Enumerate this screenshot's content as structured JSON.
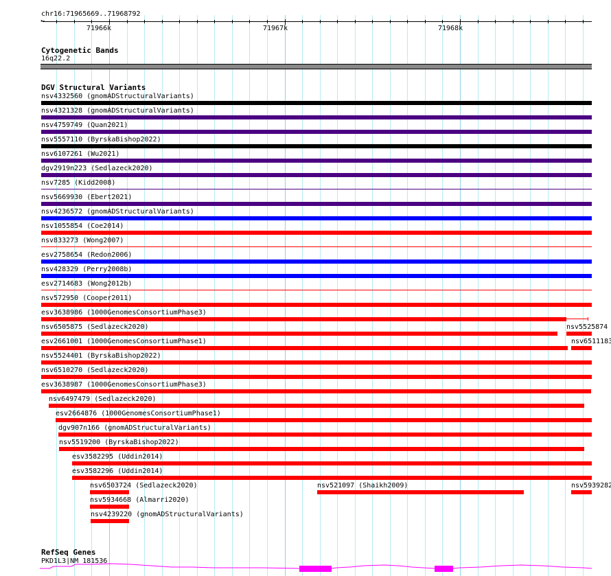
{
  "ruler": {
    "location": "chr16:71965669..71968792",
    "labels": [
      "71966k",
      "71967k",
      "71968k"
    ]
  },
  "cytobands": {
    "title": "Cytogenetic Bands",
    "band": "16q22.2"
  },
  "dgv": {
    "title": "DGV Structural Variants",
    "rows": [
      [
        {
          "label": "nsv4332560 (gnomADStructuralVariants)",
          "color": "#000000"
        }
      ],
      [
        {
          "label": "nsv4321328 (gnomADStructuralVariants)",
          "color": "#4b0082"
        }
      ],
      [
        {
          "label": "nsv4759749 (Quan2021)",
          "color": "#4b0082"
        }
      ],
      [
        {
          "label": "nsv5557110 (ByrskaBishop2022)",
          "color": "#000000"
        }
      ],
      [
        {
          "label": "nsv6107261 (Wu2021)",
          "color": "#4b0082"
        }
      ],
      [
        {
          "label": "dgv2919n223 (Sedlazeck2020)",
          "color": "#4b0082"
        }
      ],
      [
        {
          "label": "nsv7285 (Kidd2008)",
          "color": "#4b0082"
        }
      ],
      [
        {
          "label": "nsv5669930 (Ebert2021)",
          "color": "#4b0082"
        }
      ],
      [
        {
          "label": "nsv4236572 (gnomADStructuralVariants)",
          "color": "#0000ff"
        }
      ],
      [
        {
          "label": "nsv1055854 (Coe2014)",
          "color": "#ff0000"
        }
      ],
      [
        {
          "label": "nsv833273 (Wong2007)",
          "color": "#ff0000"
        }
      ],
      [
        {
          "label": "esv2758654 (Redon2006)",
          "color": "#0000ff"
        }
      ],
      [
        {
          "label": "nsv428329 (Perry2008b)",
          "color": "#0000ff"
        }
      ],
      [
        {
          "label": "esv2714683 (Wong2012b)",
          "color": "#ff0000"
        }
      ],
      [
        {
          "label": "nsv572950 (Cooper2011)",
          "color": "#ff0000"
        }
      ],
      [
        {
          "label": "esv3638986 (1000GenomesConsortiumPhase3)",
          "color": "#ff0000"
        }
      ],
      [
        {
          "label": "nsv6505875 (Sedlazeck2020)",
          "color": "#ff0000"
        },
        {
          "label": "nsv5525874",
          "color": "#ff0000"
        }
      ],
      [
        {
          "label": "esv2661001 (1000GenomesConsortiumPhase1)",
          "color": "#ff0000"
        },
        {
          "label": "nsv6511183",
          "color": "#ff0000"
        }
      ],
      [
        {
          "label": "nsv5524401 (ByrskaBishop2022)",
          "color": "#ff0000"
        }
      ],
      [
        {
          "label": "nsv6510270 (Sedlazeck2020)",
          "color": "#ff0000"
        }
      ],
      [
        {
          "label": "esv3638987 (1000GenomesConsortiumPhase3)",
          "color": "#ff0000"
        }
      ],
      [
        {
          "label": "nsv6497479 (Sedlazeck2020)",
          "color": "#ff0000"
        }
      ],
      [
        {
          "label": "esv2664876 (1000GenomesConsortiumPhase1)",
          "color": "#ff0000"
        }
      ],
      [
        {
          "label": "dgv907n166 (gnomADStructuralVariants)",
          "color": "#ff0000"
        }
      ],
      [
        {
          "label": "nsv5519200 (ByrskaBishop2022)",
          "color": "#ff0000"
        }
      ],
      [
        {
          "label": "esv3582295 (Uddin2014)",
          "color": "#ff0000"
        }
      ],
      [
        {
          "label": "esv3582296 (Uddin2014)",
          "color": "#ff0000"
        }
      ],
      [
        {
          "label": "nsv6503724 (Sedlazeck2020)",
          "color": "#ff0000"
        },
        {
          "label": "nsv521097 (Shaikh2009)",
          "color": "#ff0000"
        },
        {
          "label": "nsv5939282",
          "color": "#ff0000"
        }
      ],
      [
        {
          "label": "nsv5934668 (Almarri2020)",
          "color": "#ff0000"
        }
      ],
      [
        {
          "label": "nsv4239220 (gnomADStructuralVariants)",
          "color": "#ff0000"
        }
      ]
    ]
  },
  "refseq": {
    "title": "RefSeq Genes",
    "gene": "PKD1L3|NM_181536",
    "color": "#ff00ff"
  }
}
